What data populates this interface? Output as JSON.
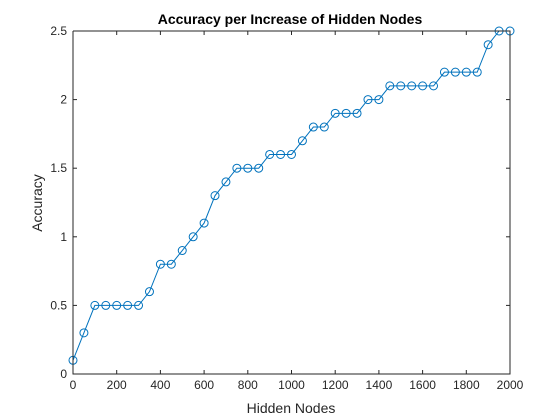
{
  "chart_data": {
    "type": "line",
    "title": "Accuracy per Increase of Hidden Nodes",
    "xlabel": "Hidden Nodes",
    "ylabel": "Accuracy",
    "xlim": [
      0,
      2000
    ],
    "ylim": [
      0,
      2.5
    ],
    "xticks": [
      0,
      200,
      400,
      600,
      800,
      1000,
      1200,
      1400,
      1600,
      1800,
      2000
    ],
    "yticks": [
      0,
      0.5,
      1,
      1.5,
      2,
      2.5
    ],
    "ytick_labels": [
      "0",
      "0.5",
      "1",
      "1.5",
      "2",
      "2.5"
    ],
    "grid": false,
    "marker": "circle",
    "color": "#0072BD",
    "series": [
      {
        "x": [
          0,
          50,
          100,
          150,
          200,
          250,
          300,
          350,
          400,
          450,
          500,
          550,
          600,
          650,
          700,
          750,
          800,
          850,
          900,
          950,
          1000,
          1050,
          1100,
          1150,
          1200,
          1250,
          1300,
          1350,
          1400,
          1450,
          1500,
          1550,
          1600,
          1650,
          1700,
          1750,
          1800,
          1850,
          1900,
          1950,
          2000
        ],
        "values": [
          0.1,
          0.3,
          0.5,
          0.5,
          0.5,
          0.5,
          0.5,
          0.6,
          0.8,
          0.8,
          0.9,
          1.0,
          1.1,
          1.3,
          1.4,
          1.5,
          1.5,
          1.5,
          1.6,
          1.6,
          1.6,
          1.7,
          1.8,
          1.8,
          1.9,
          1.9,
          1.9,
          2.0,
          2.0,
          2.1,
          2.1,
          2.1,
          2.1,
          2.1,
          2.2,
          2.2,
          2.2,
          2.2,
          2.4,
          2.5,
          2.5
        ]
      }
    ]
  }
}
